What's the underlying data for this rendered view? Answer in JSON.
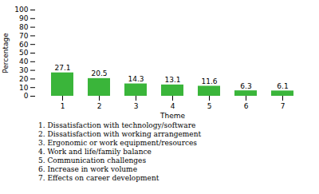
{
  "chart_data": {
    "type": "bar",
    "categories": [
      "1",
      "2",
      "3",
      "4",
      "5",
      "6",
      "7"
    ],
    "values": [
      27.1,
      20.5,
      14.3,
      13.1,
      11.6,
      6.3,
      6.1
    ],
    "color": "#3ab53a",
    "xlabel": "Theme",
    "ylabel": "Percentage",
    "ylim": [
      0,
      100
    ],
    "yticks": [
      0,
      10,
      20,
      30,
      40,
      50,
      60,
      70,
      80,
      90,
      100
    ],
    "grid": false,
    "data_labels": true,
    "annotations": [
      "1. Dissatisfaction with technology/software",
      "2. Dissatisfaction with working arrangement",
      "3. Ergonomic or work equipment/resources",
      "4. Work and life/family balance",
      "5. Communication challenges",
      "6. Increase in work volume",
      "7. Effects on career development"
    ]
  }
}
